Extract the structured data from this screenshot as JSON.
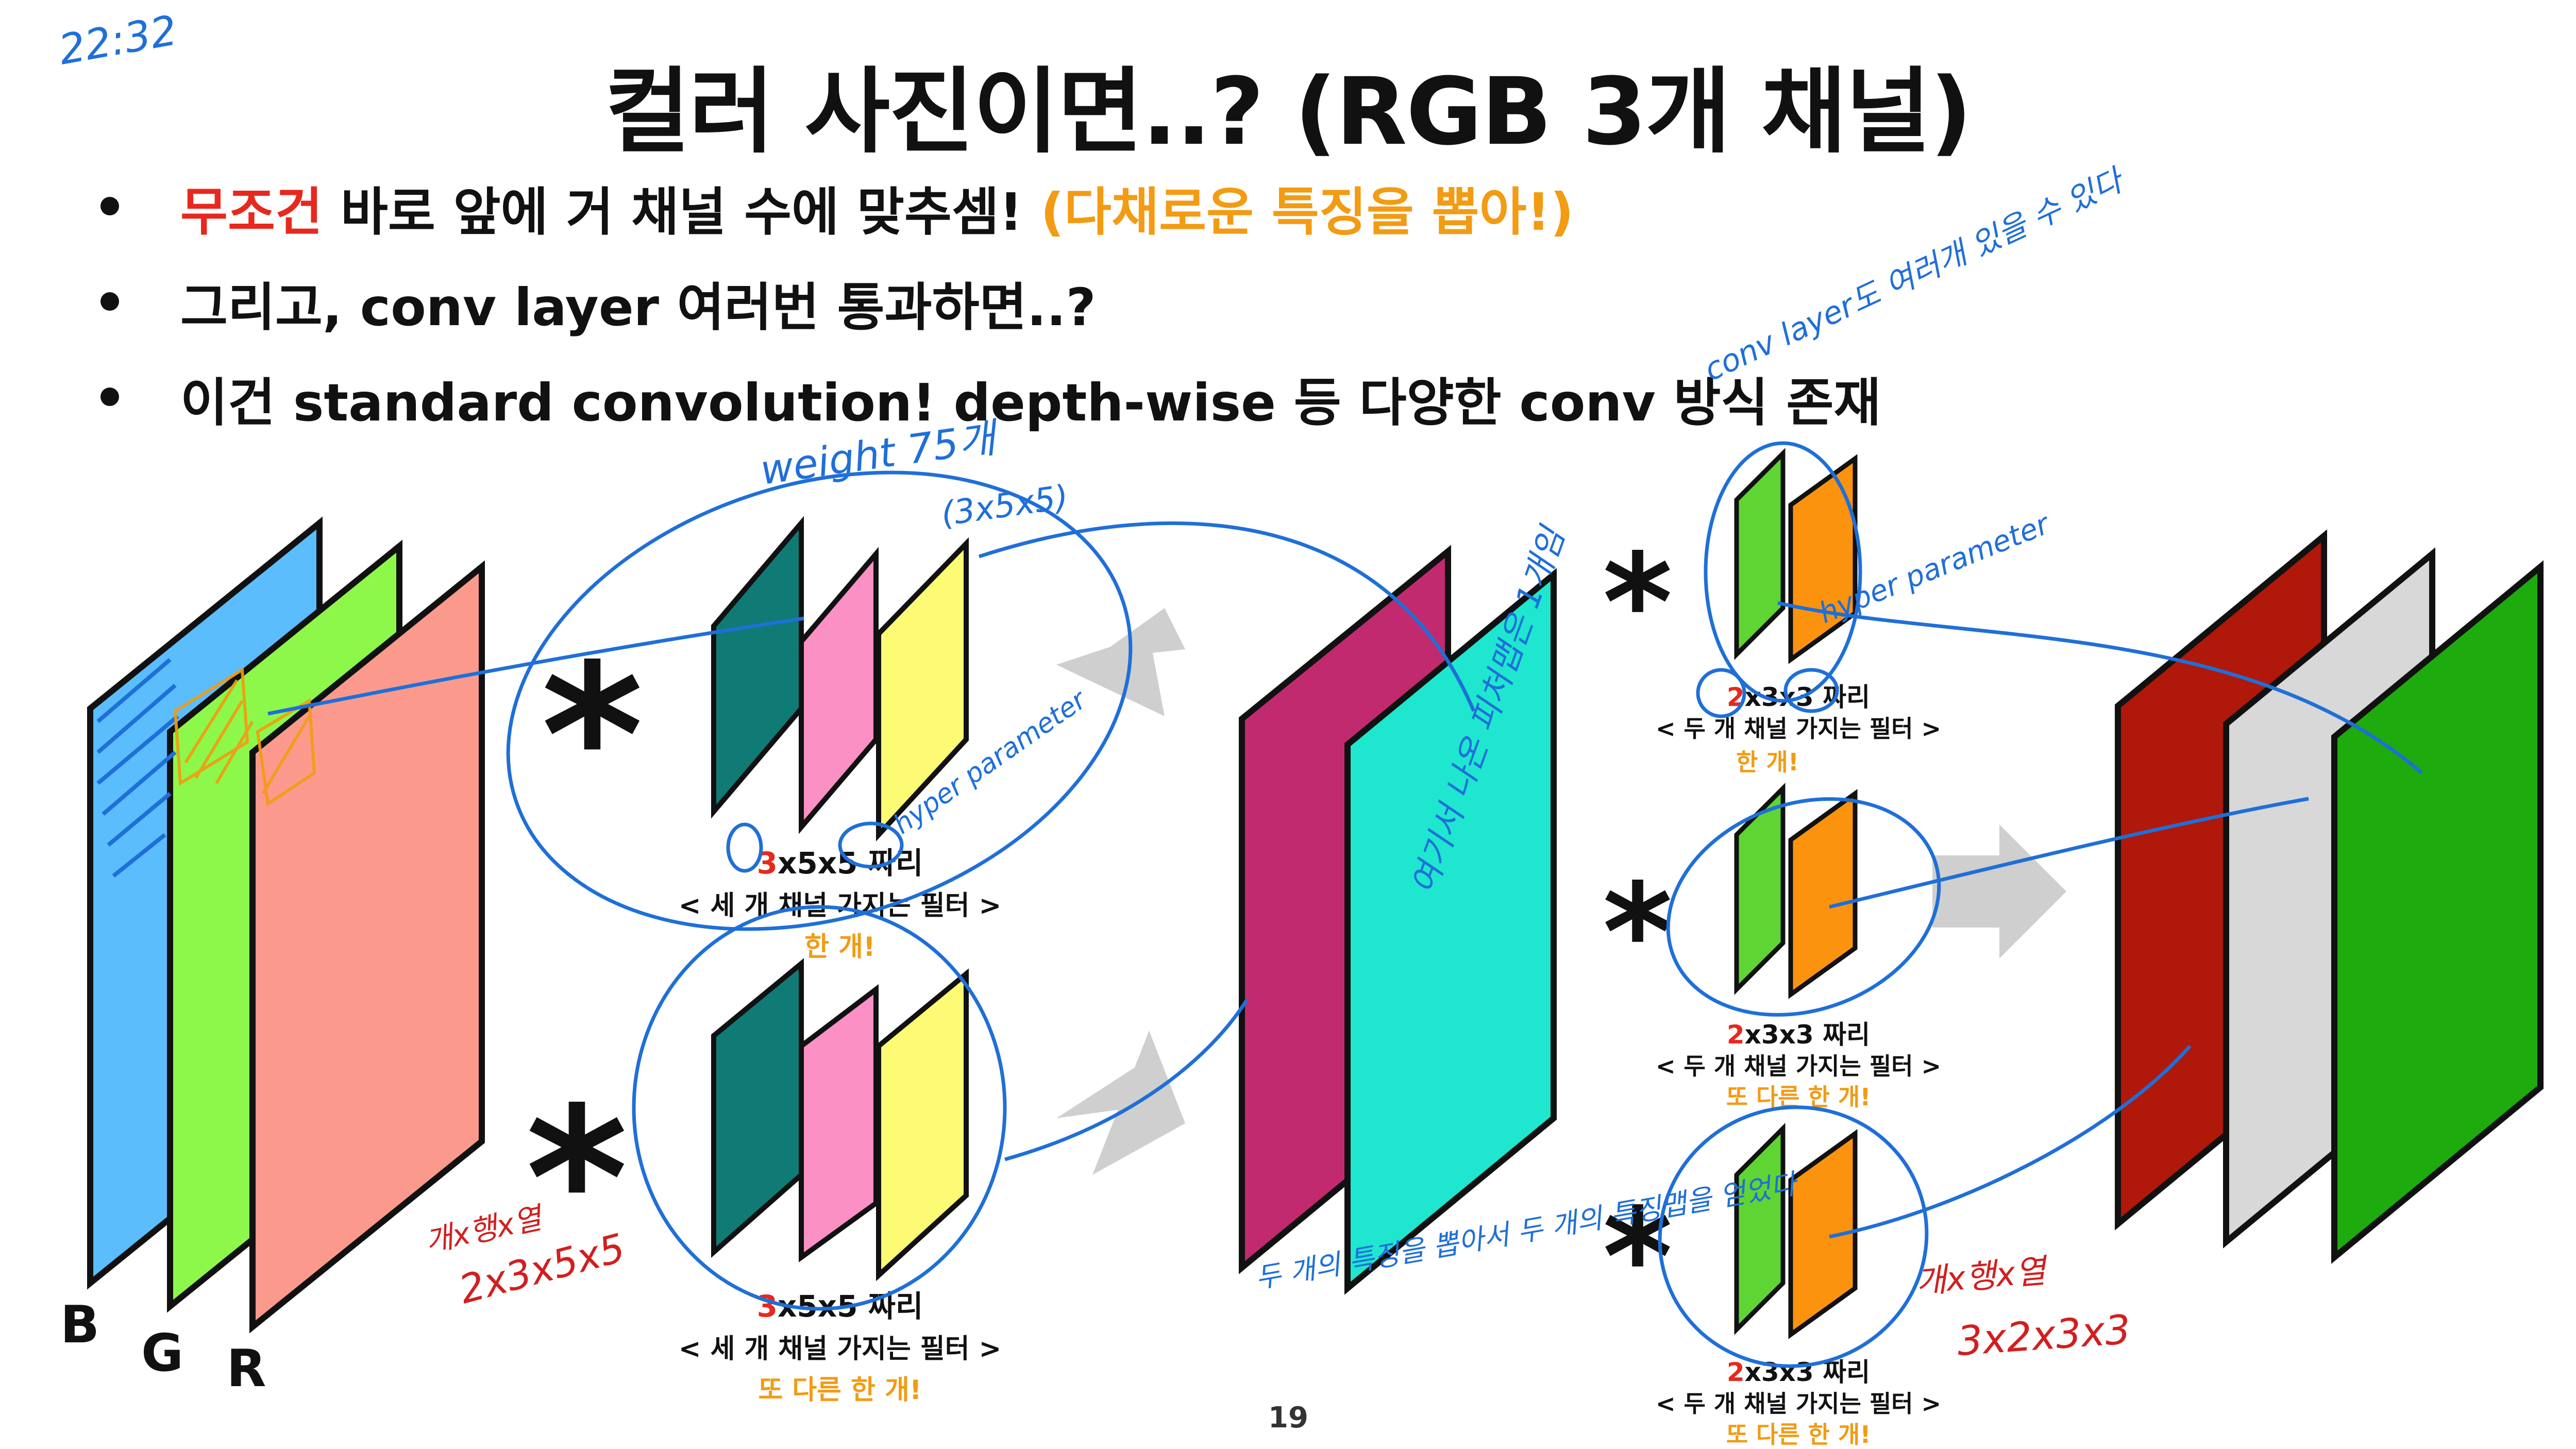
{
  "timestamp": "22:32",
  "title": "컬러 사진이면..? (RGB 3개 채널)",
  "bullets": [
    {
      "red": "무조건",
      "text": " 바로 앞에 거 채널 수에 맞추셈! ",
      "orange": "(다채로운 특징을 뽑아!)"
    },
    {
      "text": "그리고, conv layer 여러번 통과하면..?"
    },
    {
      "text": "이건 standard convolution! depth-wise 등 다양한 conv 방식 존재"
    }
  ],
  "input_labels": {
    "b": "B",
    "g": "G",
    "r": "R"
  },
  "conv_symbol": "*",
  "filter_captions": {
    "big_top": {
      "size_red": "3",
      "size_rest": "x5x5 짜리",
      "desc": "< 세 개 채널 가지는 필터 >",
      "count": "한 개!"
    },
    "big_bottom": {
      "size_red": "3",
      "size_rest": "x5x5 짜리",
      "desc": "< 세 개 채널 가지는 필터 >",
      "count": "또 다른 한 개!"
    },
    "small_1": {
      "size_red": "2",
      "size_rest": "x3x3 짜리",
      "desc": "< 두 개 채널 가지는 필터 >",
      "count": "한 개!"
    },
    "small_2": {
      "size_red": "2",
      "size_rest": "x3x3 짜리",
      "desc": "< 두 개 채널 가지는 필터 >",
      "count": "또 다른 한 개!"
    },
    "small_3": {
      "size_red": "2",
      "size_rest": "x3x3 짜리",
      "desc": "< 두 개 채널 가지는 필터 >",
      "count": "또 다른 한 개!"
    }
  },
  "page_number": "19",
  "handwritten_notes": {
    "weight": "weight 75개",
    "weight_sub": "(3x5x5)",
    "hyper_parameter": "hyper parameter",
    "conv_layer_many": "conv layer도 여러개 있을 수 있다",
    "matrix_1": "개x행x열",
    "matrix_1_val": "2x3x5x5",
    "matrix_2": "개x행x열",
    "matrix_2_val": "3x2x3x3",
    "one_feature": "여기서 나온 피처맵은 1개임",
    "two_features": "두 개의 특징을 뽑아서 두 개의 특징맵을 얻었다"
  },
  "colors": {
    "blue": "#5bbdfc",
    "green": "#8ef84a",
    "salmon": "#fb9a8c",
    "teal": "#0f7b74",
    "pink": "#fb90c5",
    "yellow": "#fdfb74",
    "magenta": "#c22a6f",
    "cyan": "#1ee6cf",
    "small_green": "#5fd534",
    "small_orange": "#fb930f",
    "dark_red": "#b01809",
    "light_gray": "#d8d8d8",
    "deep_green": "#1dab0d",
    "arrow_gray": "#cfcfcf",
    "ink_blue": "#1f6fd8",
    "ink_red": "#d11f1f"
  }
}
